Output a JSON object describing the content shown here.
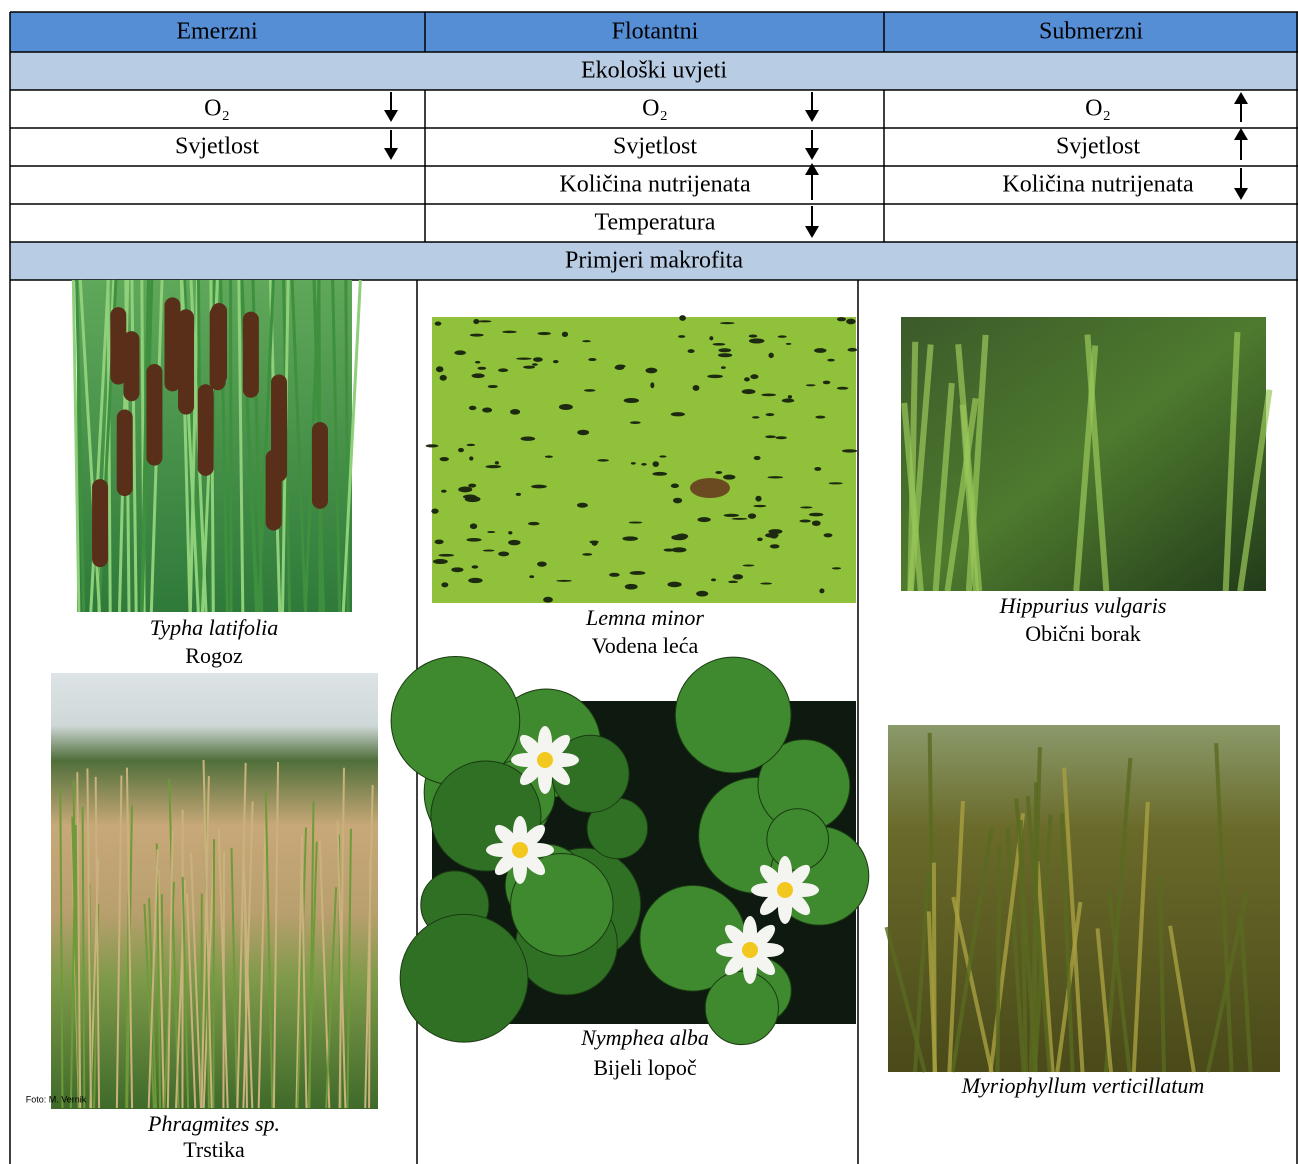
{
  "columns": [
    "Emerzni",
    "Flotantni",
    "Submerzni"
  ],
  "sections": [
    "Ekološki uvjeti",
    "Primjeri makrofita"
  ],
  "conditions": [
    [
      "O₂",
      "Svjetlost"
    ],
    [
      "O₂",
      "Svjetlost",
      "Količina nutrijenata",
      "Temperatura"
    ],
    [
      "O₂",
      "Svjetlost",
      "Količina nutrijenata"
    ]
  ],
  "examples": [
    [
      {
        "latin": "Typha latifolia",
        "common": "Rogoz"
      },
      {
        "latin": "Phragmites sp.",
        "common": "Trstika",
        "credit": "Foto: M. Vernik"
      }
    ],
    [
      {
        "latin": "Lemna minor",
        "common": "Vodena leća"
      },
      {
        "latin": "Nymphea alba",
        "common": "Bijeli lopoč"
      }
    ],
    [
      {
        "latin": "Hippurius vulgaris",
        "common": "Obični borak"
      },
      {
        "latin": "Myriophyllum verticillatum"
      }
    ]
  ]
}
